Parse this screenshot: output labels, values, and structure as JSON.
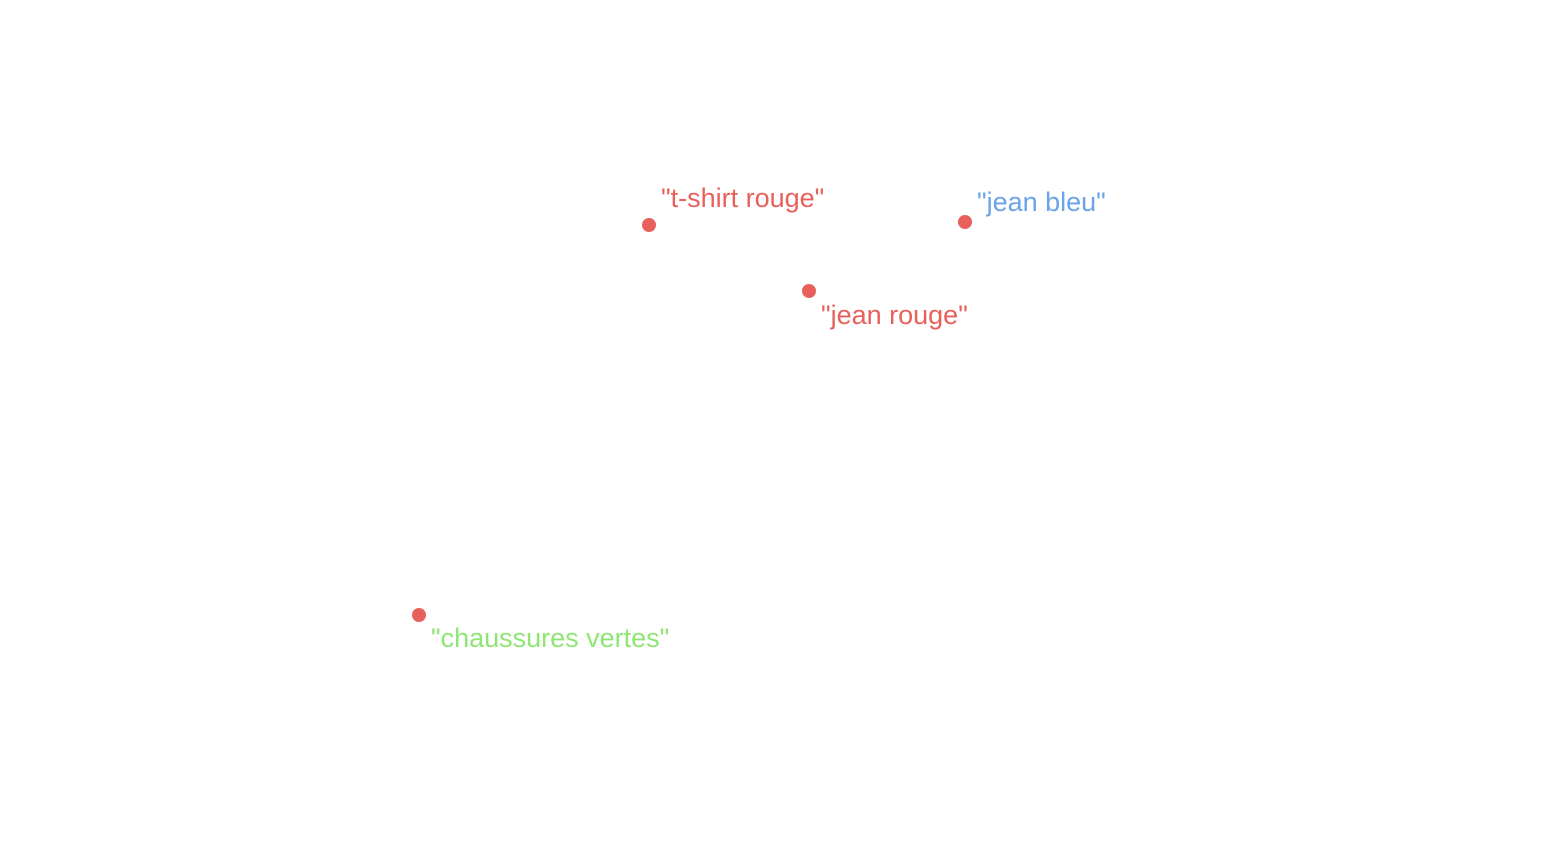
{
  "points": [
    {
      "text": "\"t-shirt rouge\"",
      "text_color": "#e8605c",
      "dot_color": "#e8605c"
    },
    {
      "text": "\"jean bleu\"",
      "text_color": "#6aa3e8",
      "dot_color": "#e8605c"
    },
    {
      "text": "\"jean rouge\"",
      "text_color": "#e8605c",
      "dot_color": "#e8605c"
    },
    {
      "text": "\"chaussures vertes\"",
      "text_color": "#8ee675",
      "dot_color": "#e8605c"
    }
  ]
}
